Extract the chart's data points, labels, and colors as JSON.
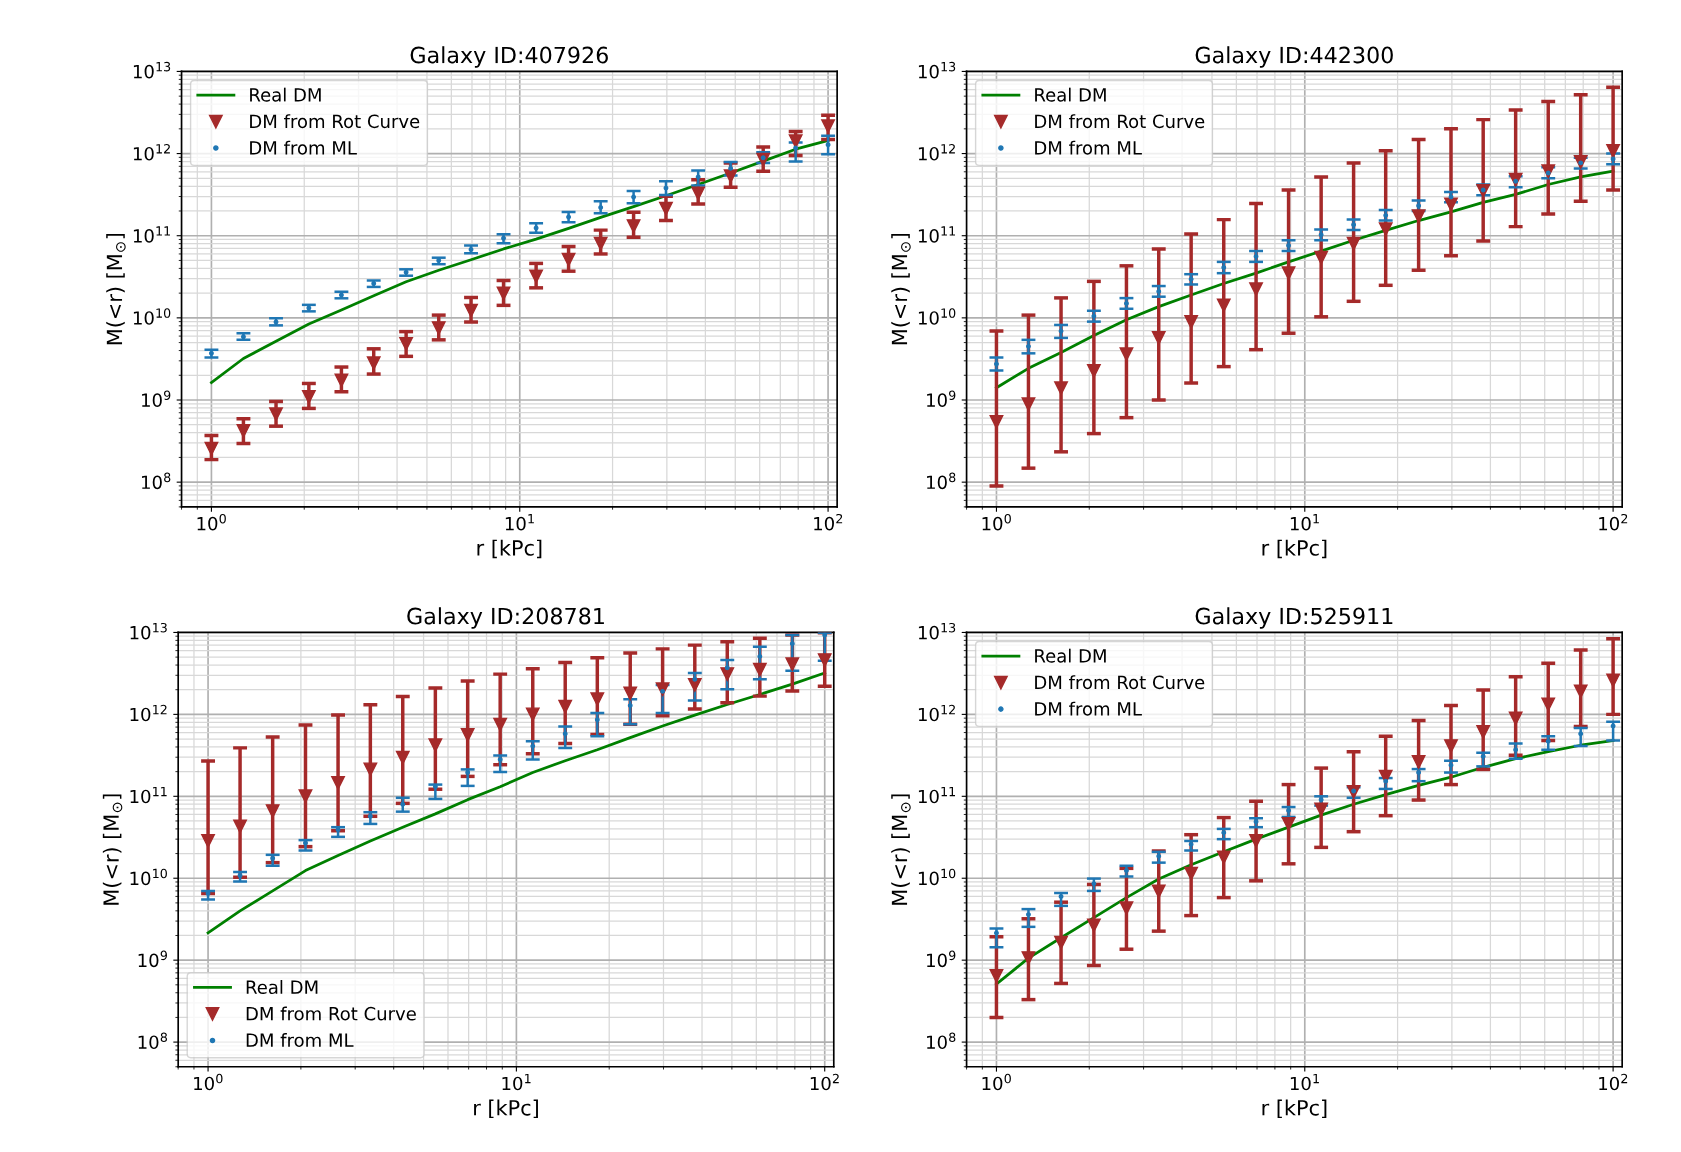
{
  "chart_data": [
    {
      "type": "line",
      "title": "Galaxy ID:407926",
      "xlabel": "r [kPc]",
      "ylabel": "M(<r) [M$_{⊙}$]",
      "log": "xy",
      "grid": true,
      "legend": "top left",
      "x": [
        1,
        1.27,
        1.62,
        2.07,
        2.64,
        3.36,
        4.28,
        5.46,
        6.95,
        8.86,
        11.3,
        14.4,
        18.3,
        23.4,
        29.8,
        37.9,
        48.3,
        61.6,
        78.5,
        100
      ],
      "xlim": [
        0.8,
        107
      ],
      "ylim": [
        50000000.0,
        10000000000000.0
      ],
      "xticks": [
        {
          "value": 1,
          "label": "10$^{0}$"
        },
        {
          "value": 10,
          "label": "10$^{1}$"
        },
        {
          "value": 100,
          "label": "10$^{2}$"
        }
      ],
      "yticks": [
        {
          "value": 100000000.0,
          "label": "10$^{8}$"
        },
        {
          "value": 1000000000.0,
          "label": "10$^{9}$"
        },
        {
          "value": 10000000000.0,
          "label": "10$^{10}$"
        },
        {
          "value": 100000000000.0,
          "label": "10$^{11}$"
        },
        {
          "value": 1000000000000.0,
          "label": "10$^{12}$"
        },
        {
          "value": 10000000000000.0,
          "label": "10$^{13}$"
        }
      ],
      "series": [
        {
          "name": "Real DM",
          "type": "line",
          "color": "#008000",
          "values": [
            1630000000.0,
            3200000000.0,
            5200000000.0,
            8400000000.0,
            12500000000.0,
            18600000000.0,
            27500000000.0,
            38000000000.0,
            51000000000.0,
            69000000000.0,
            91000000000.0,
            123000000000.0,
            167000000000.0,
            226000000000.0,
            307000000000.0,
            420000000000.0,
            580000000000.0,
            810000000000.0,
            1130000000000.0,
            1440000000000.0
          ]
        },
        {
          "name": "DM from Rot Curve",
          "type": "scatter",
          "marker": "triangle",
          "color": "#a52a2a",
          "values": [
            255000000.0,
            420000000.0,
            670000000.0,
            1090000000.0,
            1730000000.0,
            2800000000.0,
            4800000000.0,
            7500000000.0,
            12200000000.0,
            19800000000.0,
            32000000000.0,
            51000000000.0,
            80000000000.0,
            131000000000.0,
            213000000000.0,
            326000000000.0,
            530000000000.0,
            840000000000.0,
            1410000000000.0,
            2150000000000.0
          ],
          "errors": [
            [
              188000000.0,
              370000000.0
            ],
            [
              296000000.0,
              590000000.0
            ],
            [
              480000000.0,
              960000000.0
            ],
            [
              790000000.0,
              1590000000.0
            ],
            [
              1260000000.0,
              2520000000.0
            ],
            [
              2070000000.0,
              4200000000.0
            ],
            [
              3400000000.0,
              6800000000.0
            ],
            [
              5400000000.0,
              10800000000.0
            ],
            [
              8900000000.0,
              17700000000.0
            ],
            [
              14200000000.0,
              28500000000.0
            ],
            [
              23200000000.0,
              46000000000.0
            ],
            [
              37000000000.0,
              74000000000.0
            ],
            [
              60000000000.0,
              117000000000.0
            ],
            [
              96000000000.0,
              193000000000.0
            ],
            [
              153000000000.0,
              303000000000.0
            ],
            [
              243000000000.0,
              480000000000.0
            ],
            [
              390000000000.0,
              770000000000.0
            ],
            [
              610000000000.0,
              1200000000000.0
            ],
            [
              950000000000.0,
              1860000000000.0
            ],
            [
              1480000000000.0,
              2920000000000.0
            ]
          ]
        },
        {
          "name": "DM from ML",
          "type": "scatter",
          "marker": "circle",
          "color": "#1f77b4",
          "values": [
            3700000000.0,
            5900000000.0,
            8900000000.0,
            13200000000.0,
            19000000000.0,
            26200000000.0,
            36000000000.0,
            50000000000.0,
            68000000000.0,
            93000000000.0,
            124000000000.0,
            169000000000.0,
            221000000000.0,
            296000000000.0,
            380000000000.0,
            520000000000.0,
            660000000000.0,
            890000000000.0,
            1170000000000.0,
            1280000000000.0
          ],
          "errors": [
            [
              3300000000.0,
              4100000000.0
            ],
            [
              5400000000.0,
              6500000000.0
            ],
            [
              8100000000.0,
              9900000000.0
            ],
            [
              12000000000.0,
              14400000000.0
            ],
            [
              17300000000.0,
              20800000000.0
            ],
            [
              23800000000.0,
              28500000000.0
            ],
            [
              32600000000.0,
              39000000000.0
            ],
            [
              45000000000.0,
              54000000000.0
            ],
            [
              61000000000.0,
              76000000000.0
            ],
            [
              81000000000.0,
              104000000000.0
            ],
            [
              109000000000.0,
              142000000000.0
            ],
            [
              146000000000.0,
              195000000000.0
            ],
            [
              188000000000.0,
              262000000000.0
            ],
            [
              249000000000.0,
              350000000000.0
            ],
            [
              314000000000.0,
              460000000000.0
            ],
            [
              410000000000.0,
              620000000000.0
            ],
            [
              540000000000.0,
              790000000000.0
            ],
            [
              770000000000.0,
              1040000000000.0
            ],
            [
              800000000000.0,
              1360000000000.0
            ],
            [
              980000000000.0,
              1650000000000.0
            ]
          ]
        }
      ]
    },
    {
      "type": "line",
      "title": "Galaxy ID:442300",
      "xlabel": "r [kPc]",
      "ylabel": "M(<r) [M$_{⊙}$]",
      "log": "xy",
      "grid": true,
      "legend": "top left",
      "x": [
        1,
        1.27,
        1.62,
        2.07,
        2.64,
        3.36,
        4.28,
        5.46,
        6.95,
        8.86,
        11.3,
        14.4,
        18.3,
        23.4,
        29.8,
        37.9,
        48.3,
        61.6,
        78.5,
        100
      ],
      "xlim": [
        0.8,
        107
      ],
      "ylim": [
        50000000.0,
        10000000000000.0
      ],
      "xticks": [
        {
          "value": 1,
          "label": "10$^{0}$"
        },
        {
          "value": 10,
          "label": "10$^{1}$"
        },
        {
          "value": 100,
          "label": "10$^{2}$"
        }
      ],
      "yticks": [
        {
          "value": 100000000.0,
          "label": "10$^{8}$"
        },
        {
          "value": 1000000000.0,
          "label": "10$^{9}$"
        },
        {
          "value": 10000000000.0,
          "label": "10$^{10}$"
        },
        {
          "value": 100000000000.0,
          "label": "10$^{11}$"
        },
        {
          "value": 1000000000000.0,
          "label": "10$^{12}$"
        },
        {
          "value": 10000000000000.0,
          "label": "10$^{13}$"
        }
      ],
      "series": [
        {
          "name": "Real DM",
          "type": "line",
          "color": "#008000",
          "values": [
            1410000000.0,
            2430000000.0,
            3800000000.0,
            6100000000.0,
            9500000000.0,
            13700000000.0,
            19000000000.0,
            26200000000.0,
            35000000000.0,
            48000000000.0,
            65000000000.0,
            88000000000.0,
            116000000000.0,
            153000000000.0,
            195000000000.0,
            255000000000.0,
            318000000000.0,
            420000000000.0,
            520000000000.0,
            610000000000.0
          ]
        },
        {
          "name": "DM from Rot Curve",
          "type": "scatter",
          "marker": "triangle",
          "color": "#a52a2a",
          "values": [
            540000000.0,
            890000000.0,
            1390000000.0,
            2260000000.0,
            3600000000.0,
            5700000000.0,
            8900000000.0,
            14200000000.0,
            22300000000.0,
            35000000000.0,
            54000000000.0,
            80000000000.0,
            120000000000.0,
            173000000000.0,
            240000000000.0,
            350000000000.0,
            480000000000.0,
            610000000000.0,
            790000000000.0,
            1080000000000.0
          ],
          "errors": [
            [
              90000000.0,
              6900000000.0
            ],
            [
              148000000.0,
              10800000000.0
            ],
            [
              234000000.0,
              17500000000.0
            ],
            [
              390000000.0,
              27800000000.0
            ],
            [
              610000000.0,
              43000000000.0
            ],
            [
              1000000000.0,
              69000000000.0
            ],
            [
              1610000000.0,
              105000000000.0
            ],
            [
              2550000000.0,
              157000000000.0
            ],
            [
              4100000000.0,
              247000000000.0
            ],
            [
              6500000000.0,
              360000000000.0
            ],
            [
              10300000000.0,
              520000000000.0
            ],
            [
              15900000000.0,
              770000000000.0
            ],
            [
              24900000000.0,
              1080000000000.0
            ],
            [
              38000000000.0,
              1480000000000.0
            ],
            [
              57000000000.0,
              2000000000000.0
            ],
            [
              86000000000.0,
              2590000000000.0
            ],
            [
              129000000000.0,
              3400000000000.0
            ],
            [
              184000000000.0,
              4300000000000.0
            ],
            [
              262000000000.0,
              5200000000000.0
            ],
            [
              360000000000.0,
              6400000000000.0
            ]
          ]
        },
        {
          "name": "DM from ML",
          "type": "scatter",
          "marker": "circle",
          "color": "#1f77b4",
          "values": [
            2750000000.0,
            4500000000.0,
            6900000000.0,
            10500000000.0,
            15000000000.0,
            21000000000.0,
            29600000000.0,
            41000000000.0,
            56000000000.0,
            76000000000.0,
            103000000000.0,
            136000000000.0,
            177000000000.0,
            232000000000.0,
            296000000000.0,
            360000000000.0,
            460000000000.0,
            580000000000.0,
            770000000000.0,
            860000000000.0
          ],
          "errors": [
            [
              2290000000.0,
              3300000000.0
            ],
            [
              3700000000.0,
              5400000000.0
            ],
            [
              5700000000.0,
              8200000000.0
            ],
            [
              9000000000.0,
              12200000000.0
            ],
            [
              12900000000.0,
              17400000000.0
            ],
            [
              18100000000.0,
              24400000000.0
            ],
            [
              25500000000.0,
              34000000000.0
            ],
            [
              35000000000.0,
              48000000000.0
            ],
            [
              48000000000.0,
              65000000000.0
            ],
            [
              65000000000.0,
              88000000000.0
            ],
            [
              88000000000.0,
              119000000000.0
            ],
            [
              117000000000.0,
              158000000000.0
            ],
            [
              153000000000.0,
              205000000000.0
            ],
            [
              200000000000.0,
              269000000000.0
            ],
            [
              255000000000.0,
              340000000000.0
            ],
            [
              310000000000.0,
              420000000000.0
            ],
            [
              390000000000.0,
              530000000000.0
            ],
            [
              500000000000.0,
              680000000000.0
            ],
            [
              660000000000.0,
              890000000000.0
            ],
            [
              740000000000.0,
              1000000000000.0
            ]
          ]
        }
      ]
    },
    {
      "type": "line",
      "title": "Galaxy ID:208781",
      "xlabel": "r [kPc]",
      "ylabel": "M(<r) [M$_{⊙}$]",
      "log": "xy",
      "grid": true,
      "legend": "bottom left",
      "x": [
        1,
        1.27,
        1.62,
        2.07,
        2.64,
        3.36,
        4.28,
        5.46,
        6.95,
        8.86,
        11.3,
        14.4,
        18.3,
        23.4,
        29.8,
        37.9,
        48.3,
        61.6,
        78.5,
        100
      ],
      "xlim": [
        0.8,
        107
      ],
      "ylim": [
        50000000.0,
        10000000000000.0
      ],
      "xticks": [
        {
          "value": 1,
          "label": "10$^{0}$"
        },
        {
          "value": 10,
          "label": "10$^{1}$"
        },
        {
          "value": 100,
          "label": "10$^{2}$"
        }
      ],
      "yticks": [
        {
          "value": 100000000.0,
          "label": "10$^{8}$"
        },
        {
          "value": 1000000000.0,
          "label": "10$^{9}$"
        },
        {
          "value": 10000000000.0,
          "label": "10$^{10}$"
        },
        {
          "value": 100000000000.0,
          "label": "10$^{11}$"
        },
        {
          "value": 1000000000000.0,
          "label": "10$^{12}$"
        },
        {
          "value": 10000000000000.0,
          "label": "10$^{13}$"
        }
      ],
      "series": [
        {
          "name": "Real DM",
          "type": "line",
          "color": "#008000",
          "values": [
            2150000000.0,
            4000000000.0,
            7000000000.0,
            12400000000.0,
            19000000000.0,
            28500000000.0,
            42000000000.0,
            61000000000.0,
            91000000000.0,
            131000000000.0,
            195000000000.0,
            272000000000.0,
            370000000000.0,
            520000000000.0,
            720000000000.0,
            980000000000.0,
            1320000000000.0,
            1750000000000.0,
            2340000000000.0,
            3200000000000.0
          ]
        },
        {
          "name": "DM from Rot Curve",
          "type": "scatter",
          "marker": "triangle",
          "color": "#a52a2a",
          "values": [
            28500000000.0,
            43000000000.0,
            66000000000.0,
            100000000000.0,
            146000000000.0,
            213000000000.0,
            296000000000.0,
            420000000000.0,
            560000000000.0,
            750000000000.0,
            1000000000000.0,
            1240000000000.0,
            1530000000000.0,
            1800000000000.0,
            2030000000000.0,
            2290000000000.0,
            3100000000000.0,
            3500000000000.0,
            4100000000000.0,
            4600000000000.0
          ],
          "errors": [
            [
              6500000000.0,
              269000000000.0
            ],
            [
              10300000000.0,
              390000000000.0
            ],
            [
              15500000000.0,
              530000000000.0
            ],
            [
              24300000000.0,
              740000000000.0
            ],
            [
              38000000000.0,
              980000000000.0
            ],
            [
              57000000000.0,
              1310000000000.0
            ],
            [
              82000000000.0,
              1650000000000.0
            ],
            [
              122000000000.0,
              2100000000000.0
            ],
            [
              175000000000.0,
              2550000000000.0
            ],
            [
              243000000000.0,
              3100000000000.0
            ],
            [
              330000000000.0,
              3600000000000.0
            ],
            [
              440000000000.0,
              4300000000000.0
            ],
            [
              570000000000.0,
              4900000000000.0
            ],
            [
              760000000000.0,
              5600000000000.0
            ],
            [
              960000000000.0,
              6300000000000.0
            ],
            [
              1160000000000.0,
              7000000000000.0
            ],
            [
              1390000000000.0,
              7700000000000.0
            ],
            [
              1670000000000.0,
              8500000000000.0
            ],
            [
              1930000000000.0,
              9300000000000.0
            ],
            [
              2210000000000.0,
              9900000000000.0
            ]
          ]
        },
        {
          "name": "DM from ML",
          "type": "scatter",
          "marker": "circle",
          "color": "#1f77b4",
          "values": [
            6500000000.0,
            10800000000.0,
            17500000000.0,
            26900000000.0,
            39000000000.0,
            57000000000.0,
            80000000000.0,
            131000000000.0,
            195000000000.0,
            282000000000.0,
            410000000000.0,
            580000000000.0,
            860000000000.0,
            1280000000000.0,
            1910000000000.0,
            2680000000000.0,
            3700000000000.0,
            5100000000000.0,
            7300000000000.0,
            9300000000000.0
          ],
          "errors": [
            [
              5500000000.0,
              7000000000.0
            ],
            [
              9100000000.0,
              11900000000.0
            ],
            [
              14200000000.0,
              19300000000.0
            ],
            [
              21800000000.0,
              29200000000.0
            ],
            [
              32000000000.0,
              42000000000.0
            ],
            [
              46000000000.0,
              64000000000.0
            ],
            [
              65000000000.0,
              96000000000.0
            ],
            [
              93000000000.0,
              139000000000.0
            ],
            [
              134000000000.0,
              213000000000.0
            ],
            [
              198000000000.0,
              314000000000.0
            ],
            [
              282000000000.0,
              470000000000.0
            ],
            [
              390000000000.0,
              710000000000.0
            ],
            [
              540000000000.0,
              1040000000000.0
            ],
            [
              760000000000.0,
              1530000000000.0
            ],
            [
              1040000000000.0,
              2290000000000.0
            ],
            [
              1480000000000.0,
              3200000000000.0
            ],
            [
              2030000000000.0,
              4600000000000.0
            ],
            [
              2680000000000.0,
              6700000000000.0
            ],
            [
              3400000000000.0,
              9300000000000.0
            ],
            [
              4500000000000.0,
              9900000000000.0
            ]
          ]
        }
      ]
    },
    {
      "type": "line",
      "title": "Galaxy ID:525911",
      "xlabel": "r [kPc]",
      "ylabel": "M(<r) [M$_{⊙}$]",
      "log": "xy",
      "grid": true,
      "legend": "top left",
      "x": [
        1,
        1.27,
        1.62,
        2.07,
        2.64,
        3.36,
        4.28,
        5.46,
        6.95,
        8.86,
        11.3,
        14.4,
        18.3,
        23.4,
        29.8,
        37.9,
        48.3,
        61.6,
        78.5,
        100
      ],
      "xlim": [
        0.8,
        107
      ],
      "ylim": [
        50000000.0,
        10000000000000.0
      ],
      "xticks": [
        {
          "value": 1,
          "label": "10$^{0}$"
        },
        {
          "value": 10,
          "label": "10$^{1}$"
        },
        {
          "value": 100,
          "label": "10$^{2}$"
        }
      ],
      "yticks": [
        {
          "value": 100000000.0,
          "label": "10$^{8}$"
        },
        {
          "value": 1000000000.0,
          "label": "10$^{9}$"
        },
        {
          "value": 10000000000.0,
          "label": "10$^{10}$"
        },
        {
          "value": 100000000000.0,
          "label": "10$^{11}$"
        },
        {
          "value": 1000000000000.0,
          "label": "10$^{12}$"
        },
        {
          "value": 10000000000000.0,
          "label": "10$^{13}$"
        }
      ],
      "series": [
        {
          "name": "Real DM",
          "type": "line",
          "color": "#008000",
          "values": [
            510000000.0,
            1060000000.0,
            1880000000.0,
            3300000000.0,
            5800000000.0,
            9800000000.0,
            14600000000.0,
            21000000000.0,
            30000000000.0,
            42000000000.0,
            59000000000.0,
            80000000000.0,
            105000000000.0,
            136000000000.0,
            171000000000.0,
            226000000000.0,
            288000000000.0,
            350000000000.0,
            420000000000.0,
            480000000000.0
          ]
        },
        {
          "name": "DM from Rot Curve",
          "type": "scatter",
          "marker": "triangle",
          "color": "#a52a2a",
          "values": [
            640000000.0,
            1060000000.0,
            1630000000.0,
            2650000000.0,
            4300000000.0,
            6900000000.0,
            11400000000.0,
            17900000000.0,
            28500000000.0,
            46000000000.0,
            69000000000.0,
            113000000000.0,
            173000000000.0,
            262000000000.0,
            410000000000.0,
            610000000000.0,
            890000000000.0,
            1320000000000.0,
            1910000000000.0,
            2590000000000.0
          ],
          "errors": [
            [
              200000000.0,
              1930000000.0
            ],
            [
              330000000.0,
              3200000000.0
            ],
            [
              520000000.0,
              5100000000.0
            ],
            [
              860000000.0,
              8400000000.0
            ],
            [
              1360000000.0,
              13200000000.0
            ],
            [
              2260000000.0,
              21500000000.0
            ],
            [
              3500000000.0,
              34000000000.0
            ],
            [
              5800000000.0,
              55000000000.0
            ],
            [
              9300000000.0,
              87000000000.0
            ],
            [
              15000000000.0,
              139000000000.0
            ],
            [
              23800000000.0,
              221000000000.0
            ],
            [
              37000000000.0,
              350000000000.0
            ],
            [
              58000000000.0,
              540000000000.0
            ],
            [
              90000000000.0,
              840000000000.0
            ],
            [
              139000000000.0,
              1280000000000.0
            ],
            [
              213000000000.0,
              1980000000000.0
            ],
            [
              318000000000.0,
              2880000000000.0
            ],
            [
              480000000000.0,
              4200000000000.0
            ],
            [
              710000000000.0,
              6100000000000.0
            ],
            [
              1000000000000.0,
              8400000000000.0
            ]
          ]
        },
        {
          "name": "DM from ML",
          "type": "scatter",
          "marker": "circle",
          "color": "#1f77b4",
          "values": [
            2150000000.0,
            3600000000.0,
            6000000000.0,
            8600000000.0,
            12400000000.0,
            18600000000.0,
            25900000000.0,
            36000000000.0,
            49000000000.0,
            67000000000.0,
            91000000000.0,
            116000000000.0,
            153000000000.0,
            195000000000.0,
            240000000000.0,
            307000000000.0,
            370000000000.0,
            470000000000.0,
            580000000000.0,
            720000000000.0
          ],
          "errors": [
            [
              1440000000.0,
              2430000000.0
            ],
            [
              2550000000.0,
              4200000000.0
            ],
            [
              4600000000.0,
              6600000000.0
            ],
            [
              7000000000.0,
              9900000000.0
            ],
            [
              10500000000.0,
              14200000000.0
            ],
            [
              15500000000.0,
              21000000000.0
            ],
            [
              21800000000.0,
              28500000000.0
            ],
            [
              30000000000.0,
              40000000000.0
            ],
            [
              42000000000.0,
              54000000000.0
            ],
            [
              56000000000.0,
              74000000000.0
            ],
            [
              77000000000.0,
              100000000000.0
            ],
            [
              96000000000.0,
              129000000000.0
            ],
            [
              123000000000.0,
              167000000000.0
            ],
            [
              153000000000.0,
              215000000000.0
            ],
            [
              195000000000.0,
              272000000000.0
            ],
            [
              232000000000.0,
              340000000000.0
            ],
            [
              288000000000.0,
              440000000000.0
            ],
            [
              370000000000.0,
              540000000000.0
            ],
            [
              410000000000.0,
              680000000000.0
            ],
            [
              480000000000.0,
              810000000000.0
            ]
          ]
        }
      ]
    }
  ]
}
